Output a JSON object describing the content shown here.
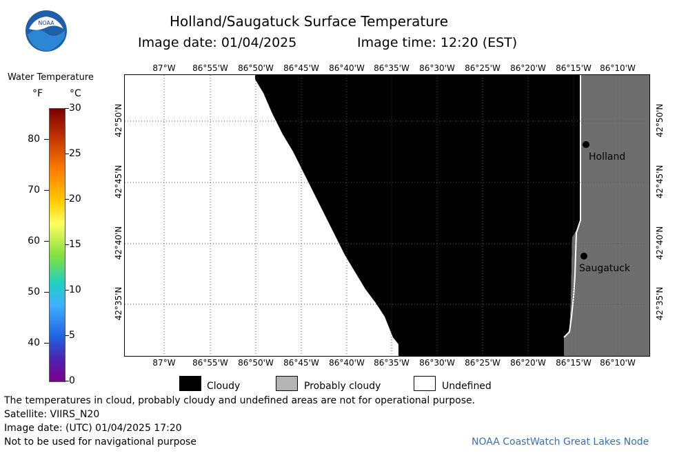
{
  "header": {
    "title": "Holland/Saugatuck Surface Temperature",
    "image_date": "Image date: 01/04/2025",
    "image_time": "Image time: 12:20 (EST)"
  },
  "logo": {
    "text": "NOAA"
  },
  "colorbar": {
    "title": "Water Temperature",
    "unit_f": "°F",
    "unit_c": "°C",
    "f_ticks": [
      "80",
      "70",
      "60",
      "50",
      "40"
    ],
    "c_ticks": [
      "30",
      "25",
      "20",
      "15",
      "10",
      "5",
      "0"
    ]
  },
  "map": {
    "lon_labels": [
      "87°W",
      "86°55'W",
      "86°50'W",
      "86°45'W",
      "86°40'W",
      "86°35'W",
      "86°30'W",
      "86°25'W",
      "86°20'W",
      "86°15'W",
      "86°10'W"
    ],
    "lat_labels": [
      "42°50'N",
      "42°45'N",
      "42°40'N",
      "42°35'N"
    ],
    "places": [
      {
        "name": "Holland"
      },
      {
        "name": "Saugatuck"
      }
    ],
    "colors": {
      "cloudy": "#000000",
      "land": "#6e6e6e",
      "undefined": "#ffffff",
      "grid": "#000000"
    }
  },
  "legend": {
    "cloudy": "Cloudy",
    "probably_cloudy": "Probably cloudy",
    "undefined": "Undefined"
  },
  "footer": {
    "disclaimer": "The temperatures in cloud, probably cloudy and undefined areas are not for operational purpose.",
    "satellite": "Satellite: VIIRS_N20",
    "utc_date": "Image date: (UTC) 01/04/2025  17:20",
    "nav_warning": "Not to be used for navigational purpose",
    "credit": "NOAA CoastWatch Great Lakes Node"
  }
}
